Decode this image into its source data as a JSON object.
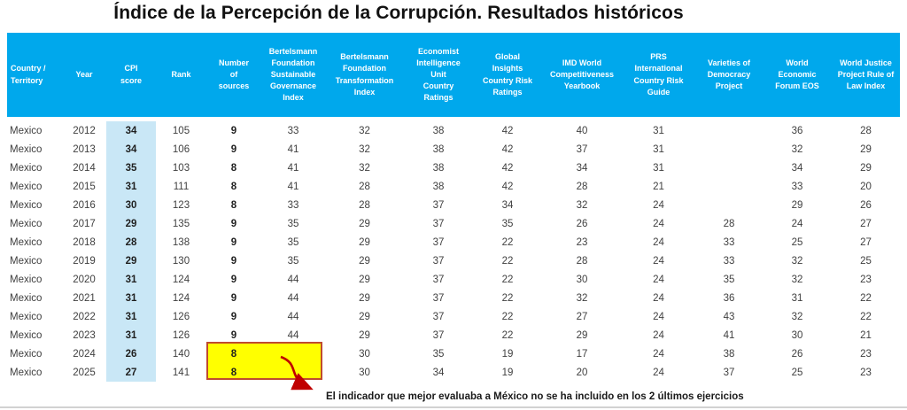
{
  "title": "Índice de la Percepción de la Corrupción. Resultados históricos",
  "annotation": {
    "text": "El indicador que mejor evaluaba a México no se ha incluido en los 2 últimos ejercicios"
  },
  "colors": {
    "header_bg": "#00a8ec",
    "header_text": "#ffffff",
    "cpi_band": "#c9e7f6",
    "highlight_fill": "#ffff00",
    "highlight_border": "#bf4b2e",
    "arrow": "#c00000",
    "body_text": "#404040"
  },
  "table": {
    "columns": [
      {
        "key": "country",
        "label": "Country /\nTerritory"
      },
      {
        "key": "year",
        "label": "Year"
      },
      {
        "key": "cpi_score",
        "label": "CPI\nscore"
      },
      {
        "key": "rank",
        "label": "Rank"
      },
      {
        "key": "sources",
        "label": "Number\nof\nsources"
      },
      {
        "key": "bf_sgi",
        "label": "Bertelsmann\nFoundation\nSustainable\nGovernance\nIndex"
      },
      {
        "key": "bf_ti",
        "label": "Bertelsmann\nFoundation\nTransformation\nIndex"
      },
      {
        "key": "eiu",
        "label": "Economist\nIntelligence\nUnit\nCountry\nRatings"
      },
      {
        "key": "global_insights",
        "label": "Global\nInsights\nCountry Risk\nRatings"
      },
      {
        "key": "imd",
        "label": "IMD World\nCompetitiveness\nYearbook"
      },
      {
        "key": "prs",
        "label": "PRS\nInternational\nCountry Risk\nGuide"
      },
      {
        "key": "vdem",
        "label": "Varieties of\nDemocracy\nProject"
      },
      {
        "key": "wef",
        "label": "World\nEconomic\nForum EOS"
      },
      {
        "key": "wjp",
        "label": "World Justice\nProject Rule of\nLaw Index"
      }
    ],
    "rows": [
      {
        "cells": [
          "Mexico",
          "2012",
          "34",
          "105",
          "9",
          "33",
          "32",
          "38",
          "42",
          "40",
          "31",
          "",
          "36",
          "28"
        ]
      },
      {
        "cells": [
          "Mexico",
          "2013",
          "34",
          "106",
          "9",
          "41",
          "32",
          "38",
          "42",
          "37",
          "31",
          "",
          "32",
          "29"
        ]
      },
      {
        "cells": [
          "Mexico",
          "2014",
          "35",
          "103",
          "8",
          "41",
          "32",
          "38",
          "42",
          "34",
          "31",
          "",
          "34",
          "29"
        ]
      },
      {
        "cells": [
          "Mexico",
          "2015",
          "31",
          "111",
          "8",
          "41",
          "28",
          "38",
          "42",
          "28",
          "21",
          "",
          "33",
          "20"
        ]
      },
      {
        "cells": [
          "Mexico",
          "2016",
          "30",
          "123",
          "8",
          "33",
          "28",
          "37",
          "34",
          "32",
          "24",
          "",
          "29",
          "26"
        ]
      },
      {
        "cells": [
          "Mexico",
          "2017",
          "29",
          "135",
          "9",
          "35",
          "29",
          "37",
          "35",
          "26",
          "24",
          "28",
          "24",
          "27"
        ]
      },
      {
        "cells": [
          "Mexico",
          "2018",
          "28",
          "138",
          "9",
          "35",
          "29",
          "37",
          "22",
          "23",
          "24",
          "33",
          "25",
          "27"
        ]
      },
      {
        "cells": [
          "Mexico",
          "2019",
          "29",
          "130",
          "9",
          "35",
          "29",
          "37",
          "22",
          "28",
          "24",
          "33",
          "32",
          "25"
        ]
      },
      {
        "cells": [
          "Mexico",
          "2020",
          "31",
          "124",
          "9",
          "44",
          "29",
          "37",
          "22",
          "30",
          "24",
          "35",
          "32",
          "23"
        ]
      },
      {
        "cells": [
          "Mexico",
          "2021",
          "31",
          "124",
          "9",
          "44",
          "29",
          "37",
          "22",
          "32",
          "24",
          "36",
          "31",
          "22"
        ]
      },
      {
        "cells": [
          "Mexico",
          "2022",
          "31",
          "126",
          "9",
          "44",
          "29",
          "37",
          "22",
          "27",
          "24",
          "43",
          "32",
          "22"
        ]
      },
      {
        "cells": [
          "Mexico",
          "2023",
          "31",
          "126",
          "9",
          "44",
          "29",
          "37",
          "22",
          "29",
          "24",
          "41",
          "30",
          "21"
        ]
      },
      {
        "cells": [
          "Mexico",
          "2024",
          "26",
          "140",
          "8",
          "",
          "30",
          "35",
          "19",
          "17",
          "24",
          "38",
          "26",
          "23"
        ]
      },
      {
        "cells": [
          "Mexico",
          "2025",
          "27",
          "141",
          "8",
          "",
          "30",
          "34",
          "19",
          "20",
          "24",
          "37",
          "25",
          "23"
        ]
      }
    ]
  },
  "chart_data": {
    "type": "table",
    "title": "Índice de la Percepción de la Corrupción. Resultados históricos",
    "columns": [
      "Country / Territory",
      "Year",
      "CPI score",
      "Rank",
      "Number of sources",
      "Bertelsmann Foundation Sustainable Governance Index",
      "Bertelsmann Foundation Transformation Index",
      "Economist Intelligence Unit Country Ratings",
      "Global Insights Country Risk Ratings",
      "IMD World Competitiveness Yearbook",
      "PRS International Country Risk Guide",
      "Varieties of Democracy Project",
      "World Economic Forum EOS",
      "World Justice Project Rule of Law Index"
    ],
    "rows": [
      [
        "Mexico",
        2012,
        34,
        105,
        9,
        33,
        32,
        38,
        42,
        40,
        31,
        null,
        36,
        28
      ],
      [
        "Mexico",
        2013,
        34,
        106,
        9,
        41,
        32,
        38,
        42,
        37,
        31,
        null,
        32,
        29
      ],
      [
        "Mexico",
        2014,
        35,
        103,
        8,
        41,
        32,
        38,
        42,
        34,
        31,
        null,
        34,
        29
      ],
      [
        "Mexico",
        2015,
        31,
        111,
        8,
        41,
        28,
        38,
        42,
        28,
        21,
        null,
        33,
        20
      ],
      [
        "Mexico",
        2016,
        30,
        123,
        8,
        33,
        28,
        37,
        34,
        32,
        24,
        null,
        29,
        26
      ],
      [
        "Mexico",
        2017,
        29,
        135,
        9,
        35,
        29,
        37,
        35,
        26,
        24,
        28,
        24,
        27
      ],
      [
        "Mexico",
        2018,
        28,
        138,
        9,
        35,
        29,
        37,
        22,
        23,
        24,
        33,
        25,
        27
      ],
      [
        "Mexico",
        2019,
        29,
        130,
        9,
        35,
        29,
        37,
        22,
        28,
        24,
        33,
        32,
        25
      ],
      [
        "Mexico",
        2020,
        31,
        124,
        9,
        44,
        29,
        37,
        22,
        30,
        24,
        35,
        32,
        23
      ],
      [
        "Mexico",
        2021,
        31,
        124,
        9,
        44,
        29,
        37,
        22,
        32,
        24,
        36,
        31,
        22
      ],
      [
        "Mexico",
        2022,
        31,
        126,
        9,
        44,
        29,
        37,
        22,
        27,
        24,
        43,
        32,
        22
      ],
      [
        "Mexico",
        2023,
        31,
        126,
        9,
        44,
        29,
        37,
        22,
        29,
        24,
        41,
        30,
        21
      ],
      [
        "Mexico",
        2024,
        26,
        140,
        8,
        null,
        30,
        35,
        19,
        17,
        24,
        38,
        26,
        23
      ],
      [
        "Mexico",
        2025,
        27,
        141,
        8,
        null,
        30,
        34,
        19,
        20,
        24,
        37,
        25,
        23
      ]
    ],
    "notes": "CPI score column highlighted light blue; Number-of-sources cells for 2024 and 2025 boxed in yellow with red border; red arrow pointing to annotation about excluded indicator"
  }
}
